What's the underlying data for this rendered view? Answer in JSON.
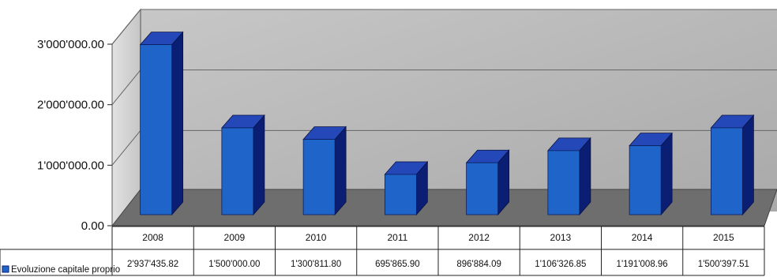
{
  "chart_data": {
    "type": "bar",
    "categories": [
      "2008",
      "2009",
      "2010",
      "2011",
      "2012",
      "2013",
      "2014",
      "2015"
    ],
    "series": [
      {
        "name": "Evoluzione capitale proprio",
        "values": [
          2937435.82,
          1500000.0,
          1300811.8,
          695865.9,
          896884.09,
          1106326.85,
          1191008.96,
          1500397.51
        ],
        "value_labels": [
          "2'937'435.82",
          "1'500'000.00",
          "1'300'811.80",
          "695'865.90",
          "896'884.09",
          "1'106'326.85",
          "1'191'008.96",
          "1'500'397.51"
        ]
      }
    ],
    "y_ticks": [
      0,
      1000000,
      2000000,
      3000000
    ],
    "y_tick_labels": [
      "0.00",
      "1'000'000.00",
      "2'000'000.00",
      "3'000'000.00"
    ],
    "ylim": [
      0,
      3000000
    ],
    "grid": true,
    "style": "3d-column",
    "data_table": true,
    "colors": {
      "bar_front": "#1f64c8",
      "bar_side": "#0a1f73",
      "bar_top": "#2448b8",
      "wall": "#b4b4b4",
      "floor": "#707070"
    }
  }
}
